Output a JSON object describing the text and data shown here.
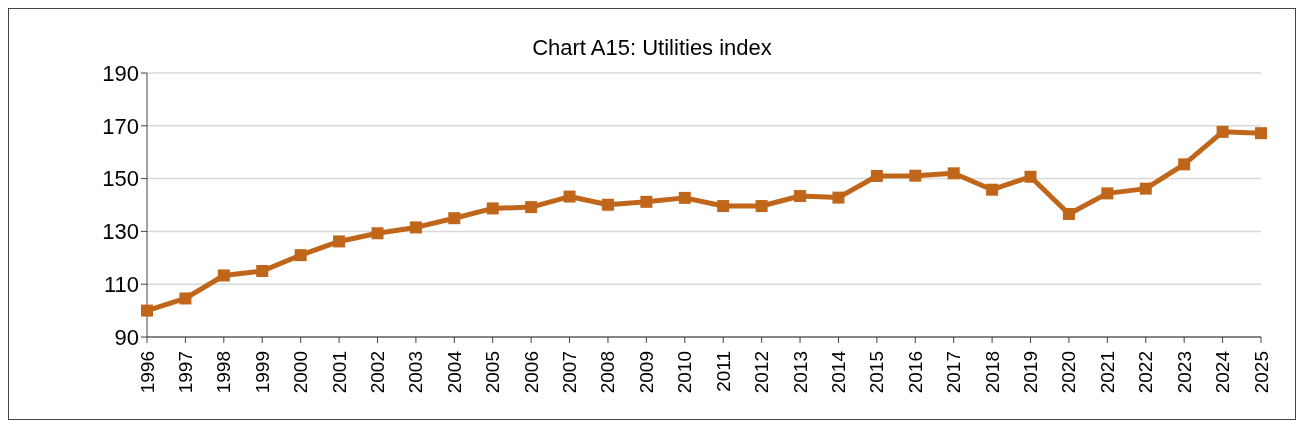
{
  "chart_data": {
    "type": "line",
    "title": "Chart A15: Utilities index",
    "categories": [
      "1996",
      "1997",
      "1998",
      "1999",
      "2000",
      "2001",
      "2002",
      "2003",
      "2004",
      "2005",
      "2006",
      "2007",
      "2008",
      "2009",
      "2010",
      "2011",
      "2012",
      "2013",
      "2014",
      "2015",
      "2016",
      "2017",
      "2018",
      "2019",
      "2020",
      "2021",
      "2022",
      "2023",
      "2024",
      "2025"
    ],
    "series": [
      {
        "color": "#c0661a",
        "values": [
          100,
          104.6,
          113.3,
          115,
          121,
          126.2,
          129.3,
          131.5,
          135,
          138.7,
          139.2,
          143.2,
          140.1,
          141.2,
          142.7,
          139.6,
          139.6,
          143.4,
          142.8,
          151,
          151.1,
          152,
          145.8,
          150.7,
          136.6,
          144.4,
          146.2,
          155.4,
          167.7,
          167.2
        ]
      }
    ],
    "ylim": [
      90,
      190
    ],
    "yticks": [
      90,
      110,
      130,
      150,
      170,
      190
    ],
    "grid": "y",
    "legend": false,
    "marker": "square",
    "line_style": "solid"
  }
}
